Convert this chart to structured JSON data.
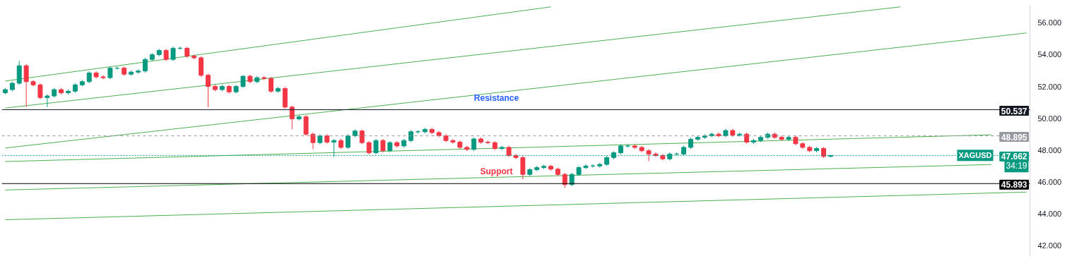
{
  "chart_data": {
    "type": "candlestick",
    "categories": [
      null,
      null,
      null,
      null,
      null,
      null,
      null,
      null,
      null,
      null,
      null,
      null,
      null,
      null,
      null,
      null,
      null,
      null,
      null,
      null,
      null,
      null,
      null,
      null,
      null,
      null,
      null,
      null,
      null,
      null,
      null,
      null,
      null,
      null,
      null,
      null,
      null,
      null,
      null,
      null,
      null,
      null,
      null,
      null,
      null,
      null,
      null,
      null,
      null,
      null,
      null,
      null,
      null,
      null,
      null,
      null,
      null,
      null,
      null,
      null,
      null,
      null,
      null,
      null,
      null,
      null,
      null,
      null,
      null,
      null,
      null,
      null,
      null,
      null,
      null,
      null,
      null,
      null,
      null,
      null,
      null,
      null,
      null,
      null,
      null,
      null,
      null,
      null,
      null,
      null,
      null,
      null,
      null,
      null,
      null,
      null,
      null,
      null,
      null,
      null,
      null,
      null,
      null,
      null,
      null,
      null,
      null,
      null,
      null,
      null,
      null,
      null,
      null,
      null,
      null,
      null,
      null,
      null,
      null,
      null,
      null,
      null,
      null,
      null,
      null,
      null,
      null,
      null,
      null,
      null,
      null,
      null,
      null,
      null,
      null,
      null,
      null,
      null,
      null,
      null,
      null,
      null,
      null,
      null,
      null,
      null,
      null
    ],
    "ohlc": [
      [
        51.6,
        51.9,
        51.5,
        51.8
      ],
      [
        51.8,
        52.3,
        51.7,
        52.2
      ],
      [
        52.2,
        53.6,
        52.1,
        53.3
      ],
      [
        53.3,
        53.4,
        50.7,
        52.3
      ],
      [
        52.3,
        52.4,
        52.0,
        52.1
      ],
      [
        52.1,
        52.2,
        51.2,
        51.3
      ],
      [
        51.3,
        51.5,
        50.7,
        51.4
      ],
      [
        51.4,
        51.9,
        51.3,
        51.8
      ],
      [
        51.8,
        51.9,
        51.5,
        51.6
      ],
      [
        51.6,
        51.8,
        51.5,
        51.7
      ],
      [
        51.7,
        52.2,
        51.6,
        52.1
      ],
      [
        52.1,
        52.4,
        52.0,
        52.3
      ],
      [
        52.3,
        52.95,
        52.2,
        52.85
      ],
      [
        52.85,
        52.95,
        52.5,
        52.6
      ],
      [
        52.6,
        52.7,
        52.45,
        52.55
      ],
      [
        52.55,
        53.25,
        52.45,
        53.15
      ],
      [
        53.15,
        53.25,
        53.05,
        53.15
      ],
      [
        53.15,
        53.25,
        52.67,
        52.77
      ],
      [
        52.77,
        53.0,
        52.67,
        52.9
      ],
      [
        52.9,
        53.07,
        52.8,
        52.97
      ],
      [
        52.97,
        53.8,
        52.87,
        53.7
      ],
      [
        53.7,
        54.1,
        53.6,
        54.0
      ],
      [
        54.0,
        54.36,
        53.9,
        54.26
      ],
      [
        54.26,
        54.36,
        53.6,
        53.7
      ],
      [
        53.7,
        54.5,
        53.6,
        54.4
      ],
      [
        54.4,
        54.5,
        54.3,
        54.4
      ],
      [
        54.4,
        54.5,
        53.8,
        53.9
      ],
      [
        53.9,
        54.0,
        53.7,
        53.8
      ],
      [
        53.8,
        53.9,
        52.6,
        52.7
      ],
      [
        52.7,
        52.8,
        50.7,
        52.0
      ],
      [
        52.0,
        52.1,
        51.7,
        51.8
      ],
      [
        51.8,
        52.1,
        51.7,
        52.0
      ],
      [
        52.0,
        52.1,
        51.56,
        51.66
      ],
      [
        51.66,
        52.1,
        51.56,
        52.0
      ],
      [
        52.0,
        52.7,
        51.9,
        52.64
      ],
      [
        52.64,
        52.74,
        52.2,
        52.3
      ],
      [
        52.3,
        52.65,
        52.2,
        52.55
      ],
      [
        52.55,
        52.65,
        52.4,
        52.5
      ],
      [
        52.5,
        52.6,
        51.6,
        51.7
      ],
      [
        51.7,
        51.97,
        51.6,
        51.87
      ],
      [
        51.87,
        51.97,
        50.6,
        50.7
      ],
      [
        50.7,
        50.8,
        49.3,
        49.96
      ],
      [
        49.96,
        50.2,
        49.86,
        50.1
      ],
      [
        50.1,
        50.2,
        48.9,
        49.0
      ],
      [
        49.0,
        49.1,
        48.06,
        48.47
      ],
      [
        48.47,
        49.0,
        48.37,
        48.9
      ],
      [
        48.9,
        49.0,
        48.4,
        48.5
      ],
      [
        48.5,
        48.7,
        47.57,
        48.6
      ],
      [
        48.6,
        48.7,
        48.07,
        48.17
      ],
      [
        48.17,
        49.0,
        48.07,
        48.9
      ],
      [
        48.9,
        49.3,
        48.8,
        49.2
      ],
      [
        49.2,
        49.3,
        48.37,
        48.47
      ],
      [
        48.47,
        48.57,
        47.73,
        47.83
      ],
      [
        47.83,
        48.7,
        47.73,
        48.6
      ],
      [
        48.6,
        48.7,
        47.86,
        47.96
      ],
      [
        47.96,
        48.57,
        47.86,
        48.47
      ],
      [
        48.47,
        48.57,
        48.16,
        48.26
      ],
      [
        48.26,
        48.7,
        48.16,
        48.6
      ],
      [
        48.6,
        49.25,
        48.5,
        49.15
      ],
      [
        49.15,
        49.25,
        49.05,
        49.15
      ],
      [
        49.15,
        49.4,
        49.05,
        49.3
      ],
      [
        49.3,
        49.4,
        49.0,
        49.1
      ],
      [
        49.1,
        49.2,
        48.8,
        48.9
      ],
      [
        48.9,
        49.0,
        48.5,
        48.6
      ],
      [
        48.6,
        48.7,
        48.4,
        48.5
      ],
      [
        48.5,
        48.6,
        48.07,
        48.17
      ],
      [
        48.17,
        48.27,
        47.94,
        48.04
      ],
      [
        48.04,
        48.8,
        47.94,
        48.7
      ],
      [
        48.7,
        48.8,
        48.4,
        48.5
      ],
      [
        48.5,
        48.6,
        48.37,
        48.47
      ],
      [
        48.47,
        48.57,
        48.0,
        48.1
      ],
      [
        48.1,
        48.27,
        48.0,
        48.17
      ],
      [
        48.17,
        48.27,
        47.56,
        47.66
      ],
      [
        47.66,
        47.76,
        47.43,
        47.53
      ],
      [
        47.53,
        47.63,
        46.17,
        46.47
      ],
      [
        46.47,
        46.87,
        46.37,
        46.77
      ],
      [
        46.77,
        47.0,
        46.67,
        46.9
      ],
      [
        46.9,
        47.08,
        46.8,
        46.98
      ],
      [
        46.98,
        47.08,
        46.7,
        46.8
      ],
      [
        46.8,
        46.9,
        46.37,
        46.47
      ],
      [
        46.47,
        46.57,
        45.62,
        45.83
      ],
      [
        45.83,
        46.57,
        45.73,
        46.47
      ],
      [
        46.47,
        47.0,
        46.37,
        46.9
      ],
      [
        46.9,
        47.1,
        46.8,
        47.0
      ],
      [
        47.0,
        47.1,
        46.9,
        47.0
      ],
      [
        47.0,
        47.2,
        46.9,
        47.1
      ],
      [
        47.1,
        47.63,
        47.0,
        47.53
      ],
      [
        47.53,
        47.93,
        47.43,
        47.83
      ],
      [
        47.83,
        48.36,
        47.73,
        48.26
      ],
      [
        48.26,
        48.36,
        48.16,
        48.26
      ],
      [
        48.26,
        48.36,
        48.07,
        48.17
      ],
      [
        48.17,
        48.27,
        47.86,
        47.96
      ],
      [
        47.96,
        48.06,
        47.3,
        47.75
      ],
      [
        47.75,
        47.85,
        47.56,
        47.66
      ],
      [
        47.66,
        47.76,
        47.35,
        47.45
      ],
      [
        47.45,
        47.85,
        47.35,
        47.75
      ],
      [
        47.75,
        47.85,
        47.65,
        47.75
      ],
      [
        47.75,
        48.27,
        47.65,
        48.17
      ],
      [
        48.17,
        48.78,
        48.07,
        48.68
      ],
      [
        48.68,
        48.9,
        48.58,
        48.8
      ],
      [
        48.8,
        49.0,
        48.7,
        48.9
      ],
      [
        48.9,
        49.1,
        48.8,
        49.0
      ],
      [
        49.0,
        49.1,
        48.8,
        48.9
      ],
      [
        48.9,
        49.33,
        48.8,
        49.23
      ],
      [
        49.23,
        49.33,
        48.84,
        48.94
      ],
      [
        48.94,
        49.1,
        48.84,
        49.0
      ],
      [
        49.0,
        49.1,
        48.4,
        48.5
      ],
      [
        48.5,
        48.7,
        48.4,
        48.6
      ],
      [
        48.6,
        48.9,
        48.5,
        48.8
      ],
      [
        48.8,
        49.1,
        48.7,
        49.0
      ],
      [
        49.0,
        49.1,
        48.7,
        48.8
      ],
      [
        48.8,
        48.9,
        48.58,
        48.68
      ],
      [
        48.68,
        48.9,
        48.58,
        48.8
      ],
      [
        48.8,
        48.9,
        48.3,
        48.4
      ],
      [
        48.4,
        48.5,
        48.07,
        48.17
      ],
      [
        48.17,
        48.27,
        47.86,
        47.96
      ],
      [
        47.96,
        48.2,
        47.86,
        48.1
      ],
      [
        48.1,
        48.2,
        47.5,
        47.6
      ],
      [
        47.6,
        47.7,
        47.55,
        47.66
      ],
      null,
      null,
      null,
      null,
      null,
      null,
      null,
      null,
      null,
      null,
      null,
      null,
      null,
      null,
      null,
      null,
      null,
      null,
      null,
      null,
      null,
      null,
      null,
      null,
      null,
      null,
      null,
      null
    ],
    "colors": [
      "#089981",
      "#089981",
      "#089981",
      "#f23645",
      "#f23645",
      "#f23645",
      "#089981",
      "#089981",
      "#f23645",
      "#089981",
      "#089981",
      "#089981",
      "#089981",
      "#f23645",
      "#f23645",
      "#089981",
      "#089981",
      "#f23645",
      "#089981",
      "#089981",
      "#089981",
      "#089981",
      "#089981",
      "#f23645",
      "#089981",
      "#089981",
      "#f23645",
      "#f23645",
      "#f23645",
      "#f23645",
      "#f23645",
      "#089981",
      "#f23645",
      "#089981",
      "#089981",
      "#f23645",
      "#089981",
      "#f23645",
      "#f23645",
      "#089981",
      "#f23645",
      "#f23645",
      "#089981",
      "#f23645",
      "#f23645",
      "#089981",
      "#f23645",
      "#089981",
      "#f23645",
      "#089981",
      "#089981",
      "#f23645",
      "#f23645",
      "#089981",
      "#f23645",
      "#089981",
      "#f23645",
      "#089981",
      "#089981",
      "#089981",
      "#089981",
      "#f23645",
      "#f23645",
      "#f23645",
      "#f23645",
      "#f23645",
      "#f23645",
      "#089981",
      "#f23645",
      "#f23645",
      "#f23645",
      "#089981",
      "#f23645",
      "#f23645",
      "#f23645",
      "#089981",
      "#089981",
      "#089981",
      "#f23645",
      "#f23645",
      "#f23645",
      "#089981",
      "#089981",
      "#089981",
      "#089981",
      "#089981",
      "#089981",
      "#089981",
      "#089981",
      "#089981",
      "#f23645",
      "#f23645",
      "#f23645",
      "#f23645",
      "#f23645",
      "#089981",
      "#089981",
      "#089981",
      "#089981",
      "#089981",
      "#089981",
      "#089981",
      "#f23645",
      "#089981",
      "#f23645",
      "#089981",
      "#f23645",
      "#089981",
      "#089981",
      "#089981",
      "#f23645",
      "#f23645",
      "#089981",
      "#f23645",
      "#f23645",
      "#f23645",
      "#089981",
      "#f23645",
      "#089981",
      null,
      null,
      null,
      null,
      null,
      null,
      null,
      null,
      null,
      null,
      null,
      null,
      null,
      null,
      null,
      null,
      null,
      null,
      null,
      null,
      null,
      null,
      null,
      null,
      null,
      null,
      null,
      null
    ],
    "series": [
      {
        "type": "line",
        "color": "#4caf50",
        "values": [
          52.34,
          null,
          null,
          null,
          null,
          null,
          null,
          null,
          null,
          null,
          null,
          null,
          null,
          null,
          null,
          null,
          null,
          null,
          null,
          null,
          null,
          null,
          null,
          null,
          null,
          null,
          null,
          null,
          null,
          null,
          null,
          null,
          null,
          null,
          null,
          null,
          null,
          null,
          null,
          null,
          null,
          null,
          null,
          null,
          null,
          null,
          null,
          null,
          null,
          null,
          null,
          null,
          null,
          null,
          null,
          null,
          null,
          null,
          null,
          null,
          null,
          null,
          null,
          null,
          null,
          null,
          null,
          null,
          null,
          null,
          null,
          null,
          null,
          null,
          null,
          null,
          null,
          null,
          57.0,
          null,
          null,
          null,
          null,
          null,
          null,
          null,
          null,
          null,
          null,
          null,
          null,
          null,
          null,
          null,
          null,
          null,
          null,
          null,
          null,
          null,
          null,
          null,
          null,
          null,
          null,
          null,
          null,
          null,
          null,
          null,
          null,
          null,
          null,
          null,
          null,
          null,
          null,
          null,
          null,
          null,
          null,
          null,
          null,
          null,
          null,
          null,
          null,
          null,
          null,
          null,
          null,
          null,
          null,
          null,
          null,
          null,
          null,
          null,
          null,
          null,
          null,
          null,
          null,
          null,
          null,
          null,
          null
        ]
      },
      {
        "type": "line",
        "color": "#4caf50",
        "values": [
          50.64,
          null,
          null,
          null,
          null,
          null,
          null,
          null,
          null,
          null,
          null,
          null,
          null,
          null,
          null,
          null,
          null,
          null,
          null,
          null,
          null,
          null,
          null,
          null,
          null,
          null,
          null,
          null,
          null,
          null,
          null,
          null,
          null,
          null,
          null,
          null,
          null,
          null,
          null,
          null,
          null,
          null,
          null,
          null,
          null,
          null,
          null,
          null,
          null,
          null,
          null,
          null,
          null,
          null,
          null,
          null,
          null,
          null,
          null,
          null,
          null,
          null,
          null,
          null,
          null,
          null,
          null,
          null,
          null,
          null,
          null,
          null,
          null,
          null,
          null,
          null,
          null,
          null,
          null,
          null,
          null,
          null,
          null,
          null,
          null,
          null,
          null,
          null,
          null,
          null,
          null,
          null,
          null,
          null,
          null,
          null,
          null,
          null,
          null,
          null,
          null,
          null,
          null,
          null,
          null,
          null,
          null,
          null,
          null,
          null,
          null,
          null,
          null,
          null,
          null,
          null,
          null,
          null,
          null,
          null,
          null,
          null,
          null,
          null,
          null,
          null,
          null,
          null,
          57.0,
          null,
          null,
          null,
          null,
          null,
          null,
          null,
          null,
          null,
          null,
          null,
          null,
          null,
          null,
          null,
          null,
          null,
          null
        ]
      },
      {
        "type": "line",
        "color": "#4caf50",
        "values": [
          48.13,
          null,
          null,
          null,
          null,
          null,
          null,
          null,
          null,
          null,
          null,
          null,
          null,
          null,
          null,
          null,
          null,
          null,
          null,
          null,
          null,
          null,
          null,
          null,
          null,
          null,
          null,
          null,
          null,
          null,
          null,
          null,
          null,
          null,
          null,
          null,
          null,
          null,
          null,
          null,
          null,
          null,
          null,
          null,
          null,
          null,
          null,
          null,
          null,
          null,
          null,
          null,
          null,
          null,
          null,
          null,
          null,
          null,
          null,
          null,
          null,
          null,
          null,
          null,
          null,
          null,
          null,
          null,
          null,
          null,
          null,
          null,
          null,
          null,
          null,
          null,
          null,
          null,
          null,
          null,
          null,
          null,
          null,
          null,
          null,
          null,
          null,
          null,
          null,
          null,
          null,
          null,
          null,
          null,
          null,
          null,
          null,
          null,
          null,
          null,
          null,
          null,
          null,
          null,
          null,
          null,
          null,
          null,
          null,
          null,
          null,
          null,
          null,
          null,
          null,
          null,
          null,
          null,
          null,
          null,
          null,
          null,
          null,
          null,
          null,
          null,
          null,
          null,
          null,
          null,
          null,
          null,
          null,
          null,
          null,
          null,
          null,
          null,
          null,
          null,
          null,
          null,
          null,
          null,
          null,
          null,
          55.36
        ]
      },
      {
        "type": "line",
        "color": "#4caf50",
        "values": [
          47.28,
          null,
          null,
          null,
          null,
          null,
          null,
          null,
          null,
          null,
          null,
          null,
          null,
          null,
          null,
          null,
          null,
          null,
          null,
          null,
          null,
          null,
          null,
          null,
          null,
          null,
          null,
          null,
          null,
          null,
          null,
          null,
          null,
          null,
          null,
          null,
          null,
          null,
          null,
          null,
          null,
          null,
          null,
          null,
          null,
          null,
          null,
          null,
          null,
          null,
          null,
          null,
          null,
          null,
          null,
          null,
          null,
          null,
          null,
          null,
          null,
          null,
          null,
          null,
          null,
          null,
          null,
          null,
          null,
          null,
          null,
          null,
          null,
          null,
          null,
          null,
          null,
          null,
          null,
          null,
          null,
          null,
          null,
          null,
          null,
          null,
          null,
          null,
          null,
          null,
          null,
          null,
          null,
          null,
          null,
          null,
          null,
          null,
          null,
          null,
          null,
          null,
          null,
          null,
          null,
          null,
          null,
          null,
          null,
          null,
          null,
          null,
          null,
          null,
          null,
          null,
          null,
          null,
          null,
          null,
          null,
          null,
          null,
          null,
          null,
          null,
          null,
          null,
          null,
          null,
          null,
          null,
          null,
          null,
          null,
          null,
          null,
          null,
          null,
          null,
          null,
          48.96,
          null,
          null,
          null,
          null,
          null
        ]
      },
      {
        "type": "line",
        "color": "#4caf50",
        "values": [
          45.49,
          null,
          null,
          null,
          null,
          null,
          null,
          null,
          null,
          null,
          null,
          null,
          null,
          null,
          null,
          null,
          null,
          null,
          null,
          null,
          null,
          null,
          null,
          null,
          null,
          null,
          null,
          null,
          null,
          null,
          null,
          null,
          null,
          null,
          null,
          null,
          null,
          null,
          null,
          null,
          null,
          null,
          null,
          null,
          null,
          null,
          null,
          null,
          null,
          null,
          null,
          null,
          null,
          null,
          null,
          null,
          null,
          null,
          null,
          null,
          null,
          null,
          null,
          null,
          null,
          null,
          null,
          null,
          null,
          null,
          null,
          null,
          null,
          null,
          null,
          null,
          null,
          null,
          null,
          null,
          null,
          null,
          null,
          null,
          null,
          null,
          null,
          null,
          null,
          null,
          null,
          null,
          null,
          null,
          null,
          null,
          null,
          null,
          null,
          null,
          null,
          null,
          null,
          null,
          null,
          null,
          null,
          null,
          null,
          null,
          null,
          null,
          null,
          null,
          null,
          null,
          null,
          null,
          null,
          null,
          null,
          null,
          null,
          null,
          null,
          null,
          null,
          null,
          null,
          null,
          null,
          null,
          null,
          null,
          null,
          null,
          null,
          null,
          null,
          null,
          null,
          47.09,
          null,
          null,
          null,
          null,
          null
        ]
      },
      {
        "type": "line",
        "color": "#4caf50",
        "values": [
          43.62,
          null,
          null,
          null,
          null,
          null,
          null,
          null,
          null,
          null,
          null,
          null,
          null,
          null,
          null,
          null,
          null,
          null,
          null,
          null,
          null,
          null,
          null,
          null,
          null,
          null,
          null,
          null,
          null,
          null,
          null,
          null,
          null,
          null,
          null,
          null,
          null,
          null,
          null,
          null,
          null,
          null,
          null,
          null,
          null,
          null,
          null,
          null,
          null,
          null,
          null,
          null,
          null,
          null,
          null,
          null,
          null,
          null,
          null,
          null,
          null,
          null,
          null,
          null,
          null,
          null,
          null,
          null,
          null,
          null,
          null,
          null,
          null,
          null,
          null,
          null,
          null,
          null,
          null,
          null,
          null,
          null,
          null,
          null,
          null,
          null,
          null,
          null,
          null,
          null,
          null,
          null,
          null,
          null,
          null,
          null,
          null,
          null,
          null,
          null,
          null,
          null,
          null,
          null,
          null,
          null,
          null,
          null,
          null,
          null,
          null,
          null,
          null,
          null,
          null,
          null,
          null,
          null,
          null,
          null,
          null,
          null,
          null,
          null,
          null,
          null,
          null,
          null,
          null,
          null,
          null,
          null,
          null,
          null,
          null,
          null,
          null,
          null,
          null,
          null,
          null,
          null,
          null,
          null,
          null,
          null,
          45.36
        ]
      }
    ],
    "ref_lines": [
      {
        "axis": "y",
        "value": 50.537,
        "label": "50.537",
        "color": "#131722",
        "line_style": "solid"
      },
      {
        "axis": "y",
        "value": 48.895,
        "label": "48.895",
        "color": "#9598a1",
        "line_style": "dashed"
      },
      {
        "axis": "y",
        "value": 45.893,
        "label": "45.893",
        "color": "#000000",
        "line_style": "solid"
      },
      {
        "axis": "y",
        "value": 47.662,
        "label": "47.662",
        "color": "#089981",
        "line_style": "dotted"
      }
    ],
    "annotations": [
      {
        "text": "Resistance",
        "y": 50.537
      },
      {
        "text": "Support",
        "y": 45.893
      },
      "XAGUSD",
      "34:19"
    ],
    "ylim": [
      41.36,
      57.1
    ],
    "yticks": [
      {
        "value": 42,
        "label": "42.000"
      },
      {
        "value": 44,
        "label": "44.000"
      },
      {
        "value": 46,
        "label": "46.000"
      },
      {
        "value": 48,
        "label": "48.000"
      },
      {
        "value": 50,
        "label": "50.000"
      },
      {
        "value": 52,
        "label": "52.000"
      },
      {
        "value": 54,
        "label": "54.000"
      },
      {
        "value": 56,
        "label": "56.000"
      }
    ],
    "tick_labels": "y",
    "grid": false
  }
}
